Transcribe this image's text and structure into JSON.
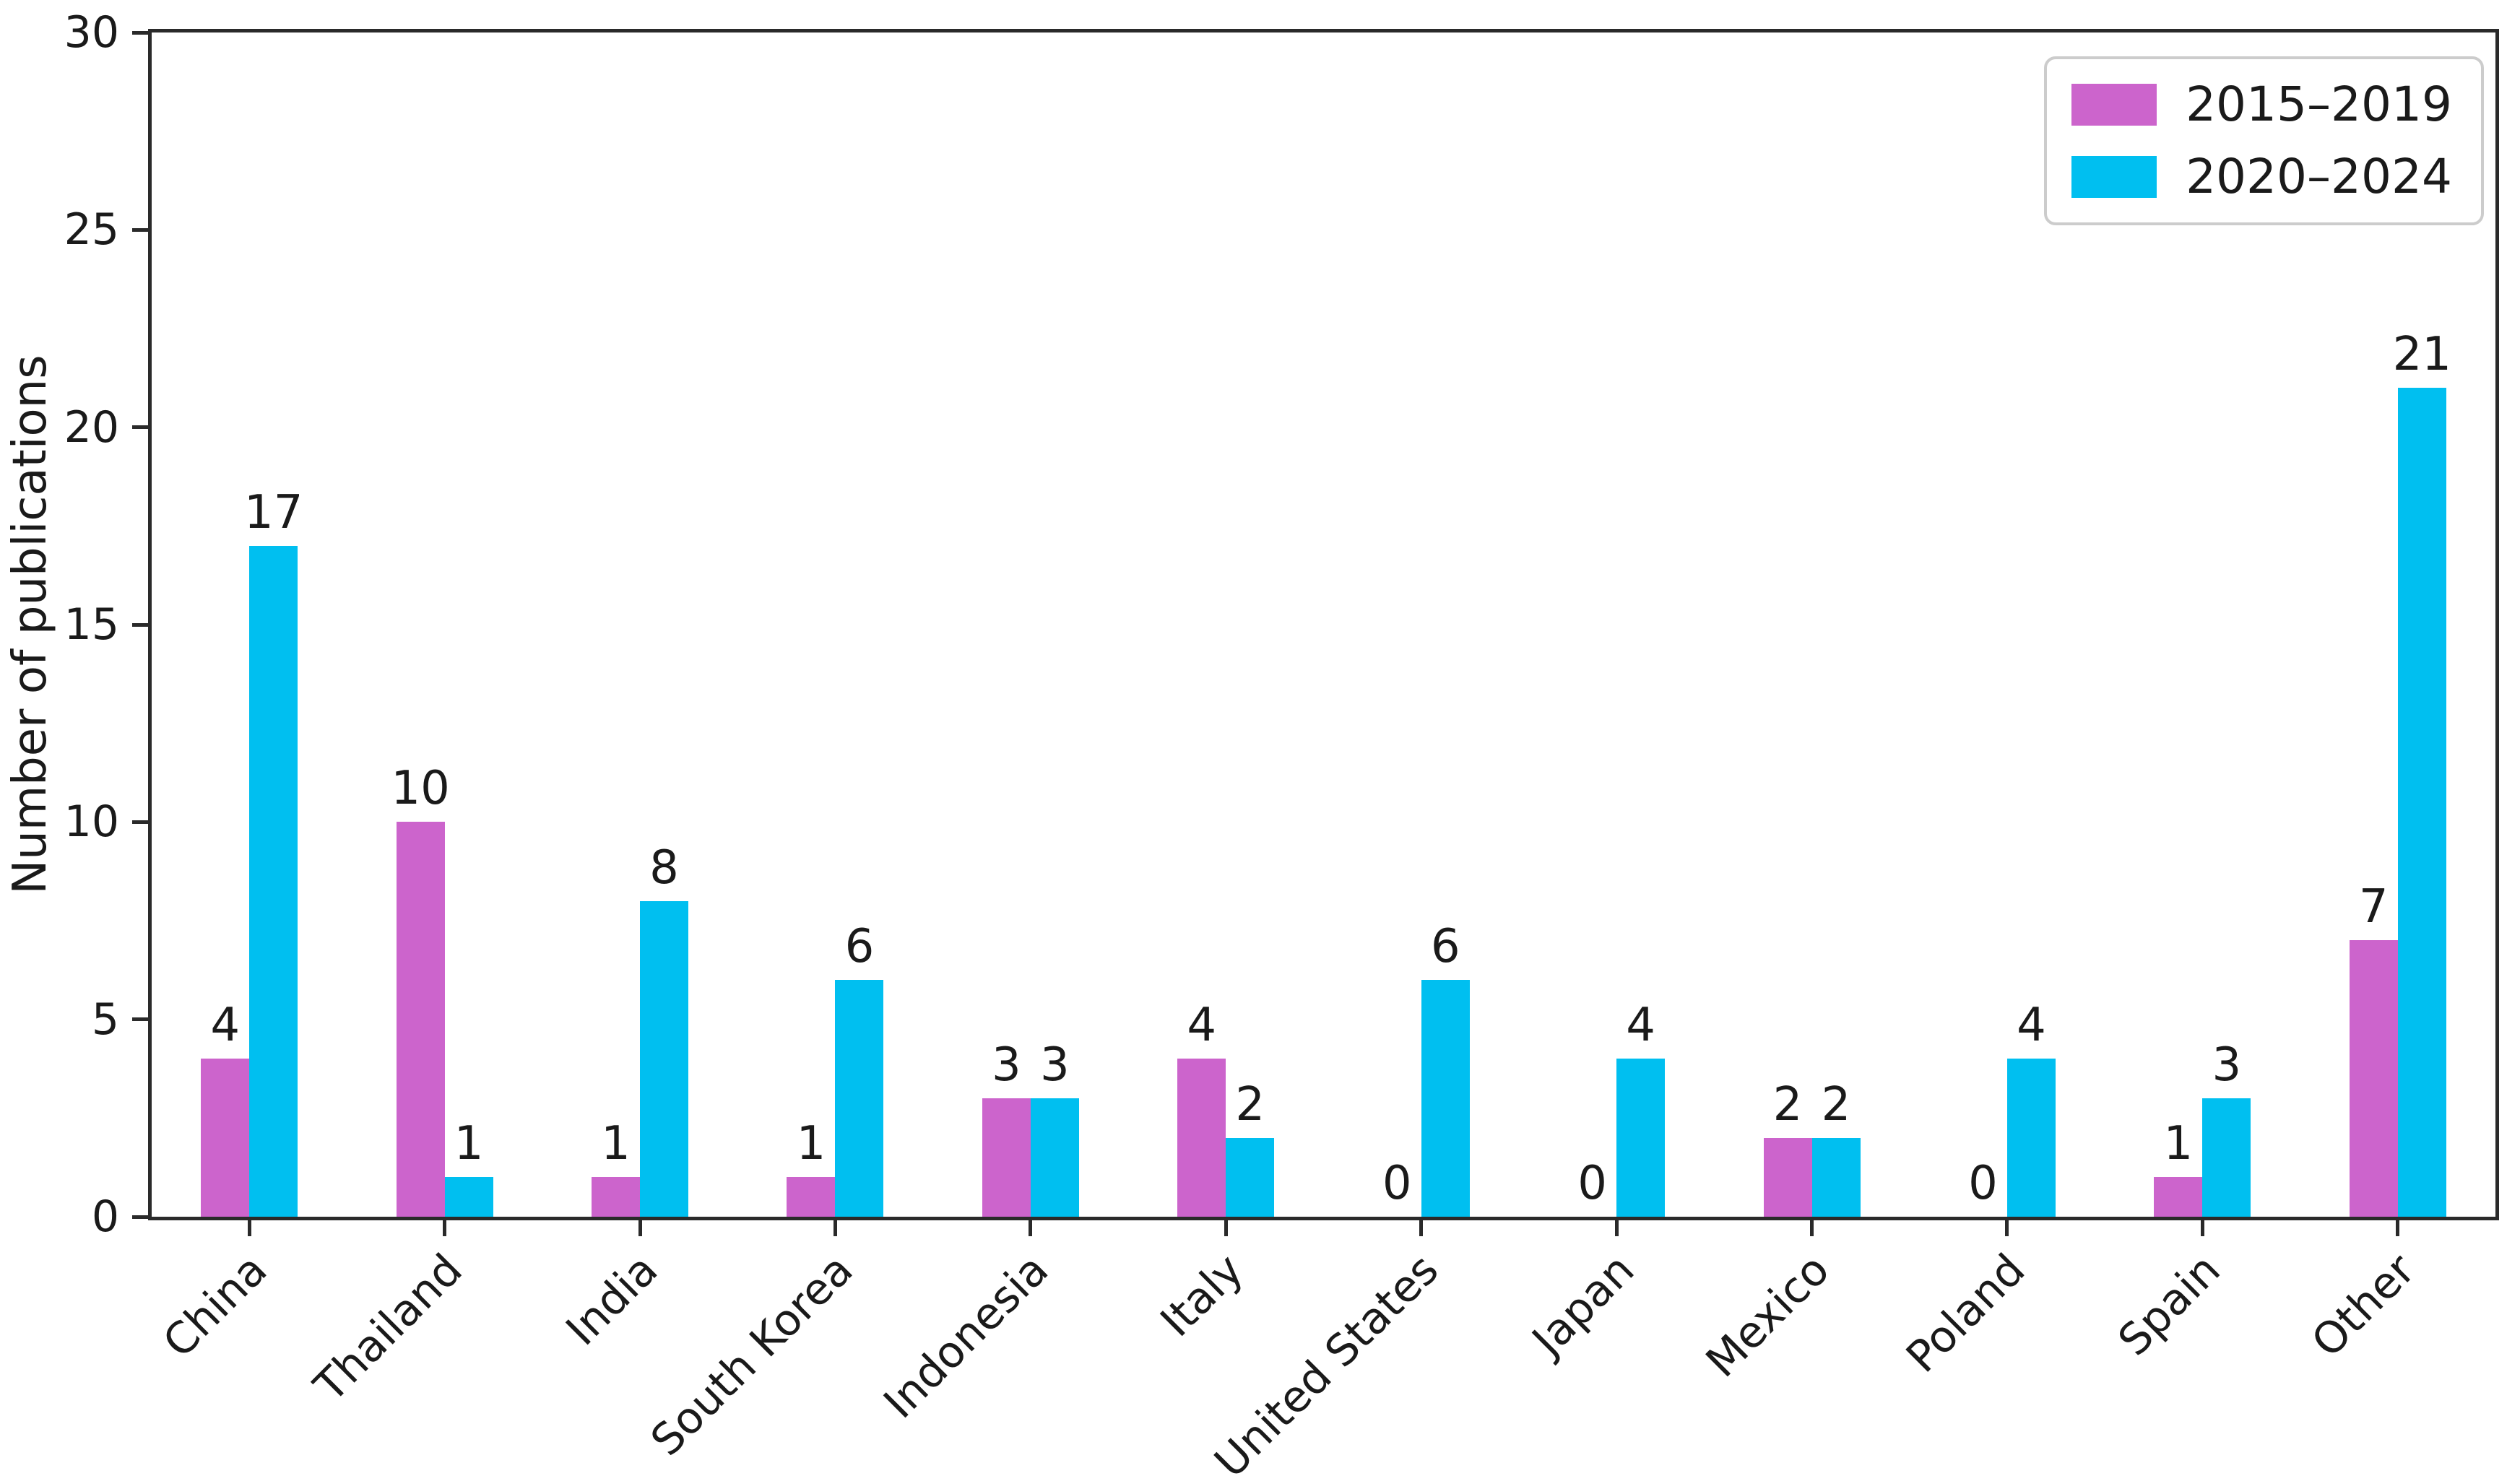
{
  "chart_data": {
    "type": "bar",
    "title": "",
    "xlabel": "",
    "ylabel": "Number of publications",
    "ylim": [
      0,
      30
    ],
    "yticks": [
      0,
      5,
      10,
      15,
      20,
      25,
      30
    ],
    "grid": false,
    "legend_position": "upper right",
    "bar_value_labels": true,
    "categories": [
      "China",
      "Thailand",
      "India",
      "South Korea",
      "Indonesia",
      "Italy",
      "United States",
      "Japan",
      "Mexico",
      "Poland",
      "Spain",
      "Other"
    ],
    "series": [
      {
        "name": "2015–2019",
        "color": "#CC64CC",
        "values": [
          4,
          10,
          1,
          1,
          3,
          4,
          0,
          0,
          2,
          0,
          1,
          7
        ]
      },
      {
        "name": "2020–2024",
        "color": "#00BFF0",
        "values": [
          17,
          1,
          8,
          6,
          3,
          2,
          6,
          4,
          2,
          4,
          3,
          21
        ]
      }
    ]
  },
  "colors": {
    "axis": "#2a2a2a",
    "text": "#1a1a1a",
    "legend_border": "#cccccc",
    "background": "#ffffff"
  }
}
